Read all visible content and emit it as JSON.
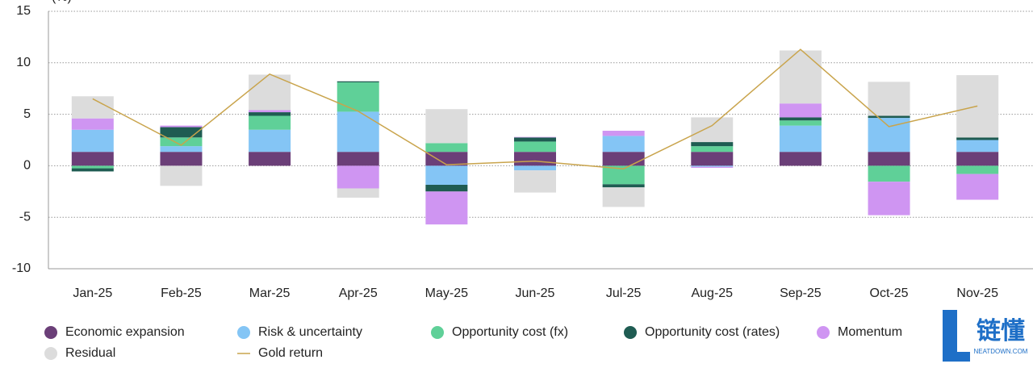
{
  "chart_data": {
    "type": "stacked-bar-line",
    "y_label": "(%)",
    "categories": [
      "Jan-25",
      "Feb-25",
      "Mar-25",
      "Apr-25",
      "May-25",
      "Jun-25",
      "Jul-25",
      "Aug-25",
      "Sep-25",
      "Oct-25",
      "Nov-25"
    ],
    "series": [
      {
        "name": "Economic expansion",
        "color": "#6b3f78",
        "values": [
          1.35,
          1.35,
          1.35,
          1.35,
          1.35,
          1.35,
          1.35,
          1.35,
          1.35,
          1.35,
          1.35
        ]
      },
      {
        "name": "Risk & uncertainty",
        "color": "#84c5f5",
        "values": [
          2.15,
          0.55,
          2.15,
          3.9,
          -1.85,
          -0.45,
          1.55,
          -0.1,
          2.55,
          3.3,
          1.15
        ]
      },
      {
        "name": "Opportunity cost (fx)",
        "color": "#5fd098",
        "values": [
          -0.25,
          0.85,
          1.35,
          2.85,
          0.85,
          1.0,
          -1.8,
          0.55,
          0.5,
          -1.55,
          -0.8
        ]
      },
      {
        "name": "Opportunity cost (rates)",
        "color": "#1f5c52",
        "values": [
          -0.3,
          1.0,
          0.35,
          0.1,
          -0.65,
          0.4,
          -0.3,
          0.4,
          0.3,
          0.2,
          0.25
        ]
      },
      {
        "name": "Momentum",
        "color": "#cf95f2",
        "values": [
          1.1,
          0.15,
          0.2,
          -2.2,
          -3.2,
          0.05,
          0.5,
          -0.1,
          1.35,
          -3.25,
          -2.5
        ]
      },
      {
        "name": "Residual",
        "color": "#dcdcdc",
        "values": [
          2.15,
          -1.95,
          3.45,
          -0.9,
          3.3,
          -2.15,
          -1.9,
          2.4,
          5.15,
          3.3,
          6.05
        ]
      },
      {
        "name": "Gold return",
        "color": "#c9a44c",
        "type": "line",
        "values": [
          6.5,
          2.0,
          8.9,
          5.3,
          0.1,
          0.45,
          -0.3,
          3.9,
          11.3,
          3.8,
          5.8
        ]
      }
    ],
    "ylim": [
      -10,
      15
    ],
    "yticks": [
      -10,
      -5,
      0,
      5,
      10,
      15
    ],
    "grid": true
  },
  "watermark": {
    "logo": "链懂",
    "site": "NEATDOWN.COM"
  }
}
